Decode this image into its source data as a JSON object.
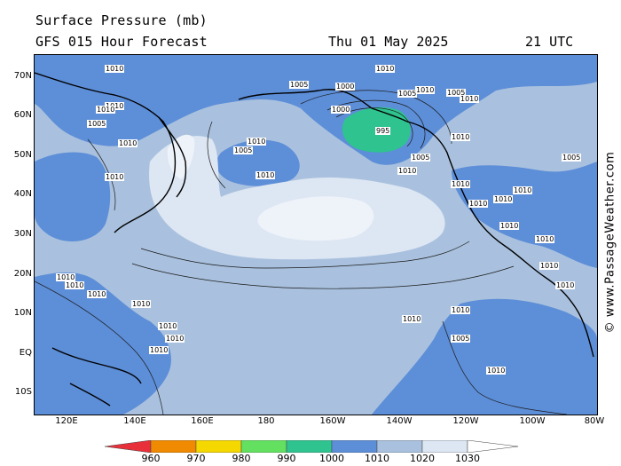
{
  "header": {
    "title": "Surface Pressure (mb)",
    "subtitle": "GFS 015 Hour Forecast",
    "date": "Thu 01 May 2025",
    "time": "21 UTC"
  },
  "watermark": "© www.PassageWeather.com",
  "axes": {
    "lat_labels": [
      "70N",
      "60N",
      "50N",
      "40N",
      "30N",
      "20N",
      "10N",
      "EQ",
      "10S"
    ],
    "lon_labels": [
      "120E",
      "140E",
      "160E",
      "180",
      "160W",
      "140W",
      "120W",
      "100W",
      "80W"
    ]
  },
  "legend": {
    "values": [
      "960",
      "970",
      "980",
      "990",
      "1000",
      "1010",
      "1020",
      "1030"
    ],
    "colors": [
      "#e8303a",
      "#f08a00",
      "#f4d800",
      "#63e060",
      "#2fc390",
      "#5d8ed8",
      "#a9c1de",
      "#dde6f3",
      "#ffffff"
    ]
  },
  "map": {
    "colors": {
      "band_1000_1010": "#5d8ed8",
      "band_1010_1020": "#a9c1de",
      "band_1020_1030": "#dde6f3",
      "band_990_1000": "#2fc390",
      "coast": "#000000",
      "isobar": "#1a1a1a"
    },
    "isobar_labels": [
      "1010",
      "1010",
      "1005",
      "1000",
      "1010",
      "1010",
      "1005",
      "1005",
      "1010",
      "1010",
      "1005",
      "1010",
      "1010",
      "1000",
      "995",
      "1005",
      "1010",
      "1010",
      "1010",
      "1005",
      "1010",
      "1010",
      "1005",
      "1010",
      "1010",
      "1010",
      "1010",
      "1010",
      "1010",
      "1010",
      "1010",
      "1010",
      "1010",
      "1010",
      "1010",
      "1010",
      "1010",
      "1010",
      "1010",
      "1005",
      "1010"
    ]
  }
}
